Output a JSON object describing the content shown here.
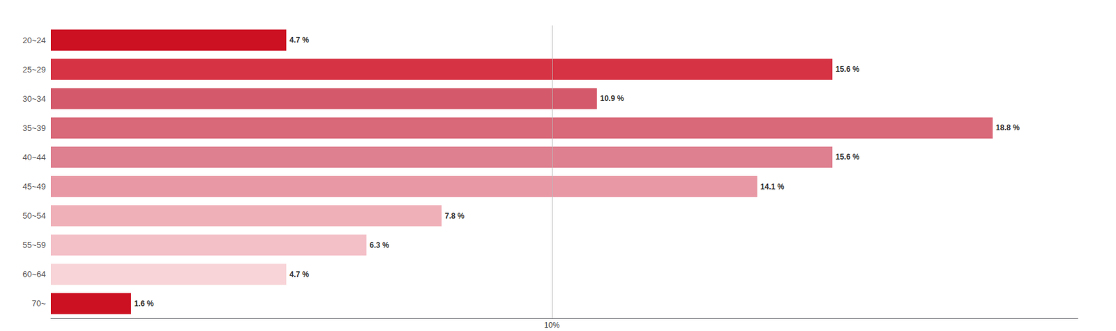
{
  "chart_data": {
    "type": "bar",
    "orientation": "horizontal",
    "categories": [
      "20~24",
      "25~29",
      "30~34",
      "35~39",
      "40~44",
      "45~49",
      "50~54",
      "55~59",
      "60~64",
      "70~"
    ],
    "values": [
      4.7,
      15.6,
      10.9,
      18.8,
      15.6,
      14.1,
      7.8,
      6.3,
      4.7,
      1.6
    ],
    "value_labels": [
      "4.7 %",
      "15.6 %",
      "10.9 %",
      "18.8 %",
      "15.6 %",
      "14.1 %",
      "7.8 %",
      "6.3 %",
      "4.7 %",
      "1.6 %"
    ],
    "colors": [
      "#cc1122",
      "#d63344",
      "#d4596a",
      "#d96878",
      "#de8090",
      "#e898a4",
      "#f0b0b8",
      "#f4c0c8",
      "#f8d4d8",
      "#cc1122"
    ],
    "data_labels": true,
    "xlim": [
      0,
      20.5
    ],
    "tick_labels": "y",
    "grid": false,
    "annotations": [
      {
        "type": "vline",
        "x": 10,
        "text": "10%",
        "color": "#bbbbbb"
      }
    ]
  }
}
